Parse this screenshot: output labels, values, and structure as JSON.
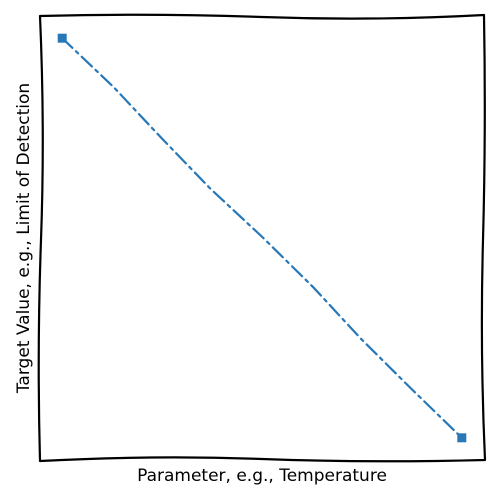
{
  "chart_data": {
    "type": "line",
    "title": "",
    "xlabel": "Parameter, e.g., Temperature",
    "ylabel": "Target Value, e.g., Limit of Detection",
    "xlim": [
      0,
      1
    ],
    "ylim": [
      0,
      1
    ],
    "grid": false,
    "ticks": false,
    "series": [
      {
        "color": "#2878b8",
        "linestyle": "dash-dot",
        "marker": "square",
        "x": [
          0.05,
          0.95
        ],
        "y": [
          0.95,
          0.05
        ]
      }
    ]
  }
}
